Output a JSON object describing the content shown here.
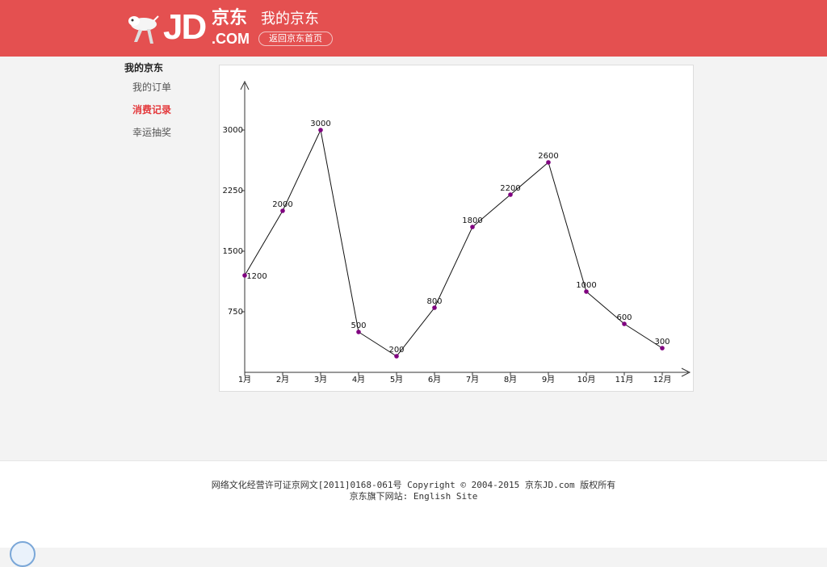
{
  "header": {
    "logo_text": "JD",
    "logo_cn": "京东",
    "logo_com": ".COM",
    "site_title": "我的京东",
    "home_button": "返回京东首页"
  },
  "sidebar": {
    "title": "我的京东",
    "items": [
      {
        "label": "我的订单",
        "active": false
      },
      {
        "label": "消费记录",
        "active": true
      },
      {
        "label": "幸运抽奖",
        "active": false
      }
    ]
  },
  "chart_data": {
    "type": "line",
    "categories": [
      "1月",
      "2月",
      "3月",
      "4月",
      "5月",
      "6月",
      "7月",
      "8月",
      "9月",
      "10月",
      "11月",
      "12月"
    ],
    "values": [
      1200,
      2000,
      3000,
      500,
      200,
      800,
      1800,
      2200,
      2600,
      1000,
      600,
      300
    ],
    "y_ticks": [
      750,
      1500,
      2250,
      3000
    ],
    "ylim": [
      0,
      3300
    ],
    "point_color": "#800080",
    "line_color": "#111111",
    "grid": false
  },
  "footer": {
    "line1": "网络文化经营许可证京网文[2011]0168-061号 Copyright © 2004-2015 京东JD.com 版权所有",
    "line2": "京东旗下网站: English Site"
  },
  "colors": {
    "header_bg": "#e45050",
    "active_link": "#e4393c"
  },
  "icons": {
    "mascot": "jd-dog-mascot-icon",
    "help": "help-icon"
  }
}
